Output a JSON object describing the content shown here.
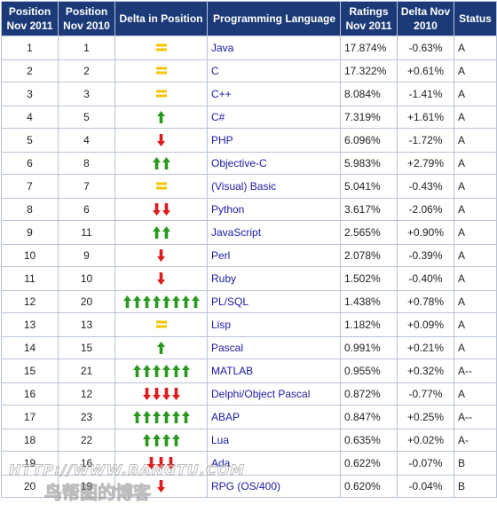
{
  "headers": {
    "pos2011": "Position Nov 2011",
    "pos2010": "Position Nov 2010",
    "delta_position": "Delta in Position",
    "language": "Programming Language",
    "ratings": "Ratings Nov 2011",
    "delta": "Delta Nov 2010",
    "status": "Status"
  },
  "colors": {
    "header_bg": "#1c3a78",
    "up": "#2a9a1f",
    "down": "#e01b1b",
    "same": "#f5c400",
    "link": "#1a1aa6"
  },
  "rows": [
    {
      "pos2011": "1",
      "pos2010": "1",
      "move": "same",
      "count": 1,
      "language": "Java",
      "rating": "17.874%",
      "delta": "-0.63%",
      "status": "A"
    },
    {
      "pos2011": "2",
      "pos2010": "2",
      "move": "same",
      "count": 1,
      "language": "C",
      "rating": "17.322%",
      "delta": "+0.61%",
      "status": "A"
    },
    {
      "pos2011": "3",
      "pos2010": "3",
      "move": "same",
      "count": 1,
      "language": "C++",
      "rating": "8.084%",
      "delta": "-1.41%",
      "status": "A"
    },
    {
      "pos2011": "4",
      "pos2010": "5",
      "move": "up",
      "count": 1,
      "language": "C#",
      "rating": "7.319%",
      "delta": "+1.61%",
      "status": "A"
    },
    {
      "pos2011": "5",
      "pos2010": "4",
      "move": "down",
      "count": 1,
      "language": "PHP",
      "rating": "6.096%",
      "delta": "-1.72%",
      "status": "A"
    },
    {
      "pos2011": "6",
      "pos2010": "8",
      "move": "up",
      "count": 2,
      "language": "Objective-C",
      "rating": "5.983%",
      "delta": "+2.79%",
      "status": "A"
    },
    {
      "pos2011": "7",
      "pos2010": "7",
      "move": "same",
      "count": 1,
      "language": "(Visual) Basic",
      "rating": "5.041%",
      "delta": "-0.43%",
      "status": "A"
    },
    {
      "pos2011": "8",
      "pos2010": "6",
      "move": "down",
      "count": 2,
      "language": "Python",
      "rating": "3.617%",
      "delta": "-2.06%",
      "status": "A"
    },
    {
      "pos2011": "9",
      "pos2010": "11",
      "move": "up",
      "count": 2,
      "language": "JavaScript",
      "rating": "2.565%",
      "delta": "+0.90%",
      "status": "A"
    },
    {
      "pos2011": "10",
      "pos2010": "9",
      "move": "down",
      "count": 1,
      "language": "Perl",
      "rating": "2.078%",
      "delta": "-0.39%",
      "status": "A"
    },
    {
      "pos2011": "11",
      "pos2010": "10",
      "move": "down",
      "count": 1,
      "language": "Ruby",
      "rating": "1.502%",
      "delta": "-0.40%",
      "status": "A"
    },
    {
      "pos2011": "12",
      "pos2010": "20",
      "move": "up",
      "count": 8,
      "language": "PL/SQL",
      "rating": "1.438%",
      "delta": "+0.78%",
      "status": "A"
    },
    {
      "pos2011": "13",
      "pos2010": "13",
      "move": "same",
      "count": 1,
      "language": "Lisp",
      "rating": "1.182%",
      "delta": "+0.09%",
      "status": "A"
    },
    {
      "pos2011": "14",
      "pos2010": "15",
      "move": "up",
      "count": 1,
      "language": "Pascal",
      "rating": "0.991%",
      "delta": "+0.21%",
      "status": "A"
    },
    {
      "pos2011": "15",
      "pos2010": "21",
      "move": "up",
      "count": 6,
      "language": "MATLAB",
      "rating": "0.955%",
      "delta": "+0.32%",
      "status": "A--"
    },
    {
      "pos2011": "16",
      "pos2010": "12",
      "move": "down",
      "count": 4,
      "language": "Delphi/Object Pascal",
      "rating": "0.872%",
      "delta": "-0.77%",
      "status": "A"
    },
    {
      "pos2011": "17",
      "pos2010": "23",
      "move": "up",
      "count": 6,
      "language": "ABAP",
      "rating": "0.847%",
      "delta": "+0.25%",
      "status": "A--"
    },
    {
      "pos2011": "18",
      "pos2010": "22",
      "move": "up",
      "count": 4,
      "language": "Lua",
      "rating": "0.635%",
      "delta": "+0.02%",
      "status": "A-"
    },
    {
      "pos2011": "19",
      "pos2010": "16",
      "move": "down",
      "count": 3,
      "language": "Ada",
      "rating": "0.622%",
      "delta": "-0.07%",
      "status": "B"
    },
    {
      "pos2011": "20",
      "pos2010": "19",
      "move": "down",
      "count": 1,
      "language": "RPG (OS/400)",
      "rating": "0.620%",
      "delta": "-0.04%",
      "status": "B"
    }
  ],
  "watermark": {
    "line1": "HTTP://WWW.BANGTU.COM",
    "line2": "鸟帮图的博客"
  }
}
